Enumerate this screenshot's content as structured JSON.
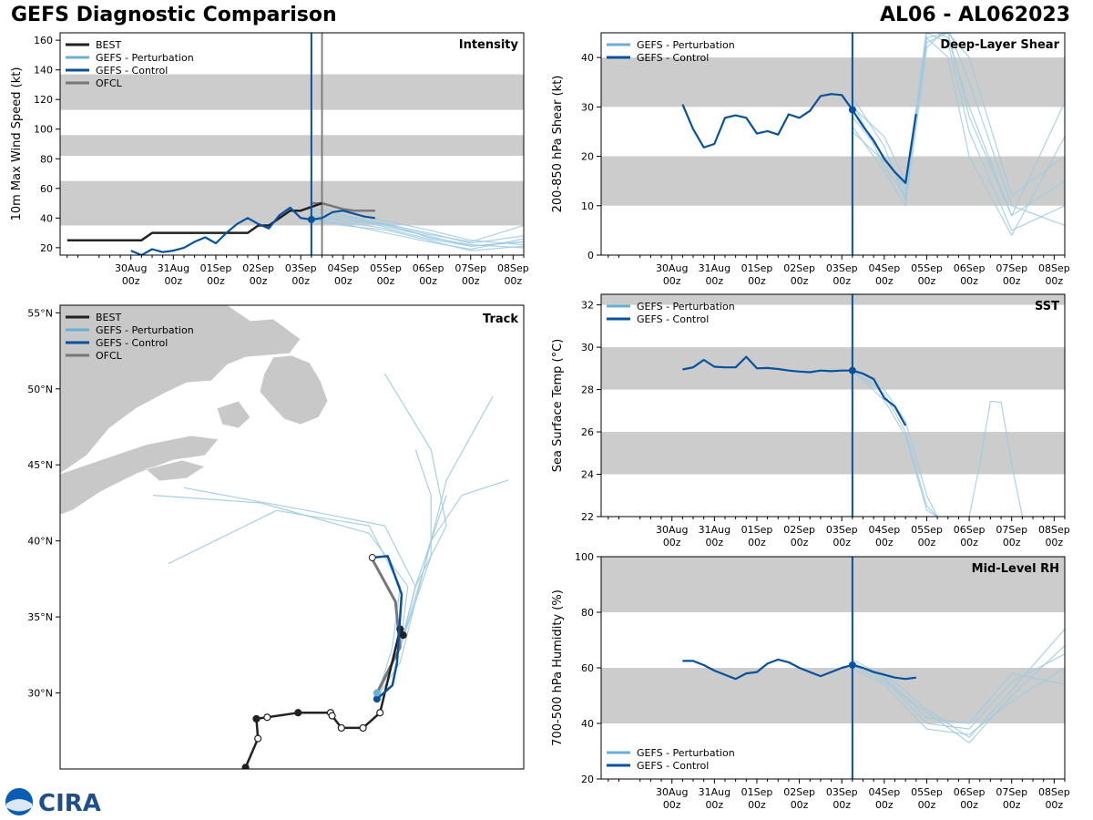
{
  "header": {
    "title": "GEFS Diagnostic Comparison",
    "storm": "AL06 - AL062023"
  },
  "logo": {
    "text": "CIRA"
  },
  "colors": {
    "best": "#222222",
    "perturbation": "#6aaed6",
    "control": "#08519c",
    "ofcl": "#777777",
    "band": "#cccccc",
    "pert_thin": "#9ecae1"
  },
  "legend_labels": {
    "best": "BEST",
    "perturbation": "GEFS - Perturbation",
    "control": "GEFS - Control",
    "ofcl": "OFCL"
  },
  "time_axis": {
    "units": "hours since 30Aug 00z",
    "range": [
      -40,
      222
    ],
    "ticks": [
      0,
      24,
      48,
      72,
      96,
      120,
      144,
      168,
      192,
      216
    ],
    "tick_labels_top": [
      "30Aug",
      "31Aug",
      "01Sep",
      "02Sep",
      "03Sep",
      "04Sep",
      "05Sep",
      "06Sep",
      "07Sep",
      "08Sep"
    ],
    "tick_labels_bottom": [
      "00z",
      "00z",
      "00z",
      "00z",
      "00z",
      "00z",
      "00z",
      "00z",
      "00z",
      "00z"
    ],
    "init_time": 102,
    "ofcl_time": 108
  },
  "chart_data": [
    {
      "id": "intensity",
      "type": "line",
      "title": "Intensity",
      "ylabel": "10m Max Wind Speed (kt)",
      "ylim": [
        15,
        165
      ],
      "yticks": [
        20,
        40,
        60,
        80,
        100,
        120,
        140,
        160
      ],
      "bands": [
        [
          35,
          65
        ],
        [
          82,
          96
        ],
        [
          113,
          137
        ]
      ],
      "best": {
        "x": [
          -36,
          6,
          12,
          24,
          36,
          48,
          60,
          66,
          72,
          78,
          84,
          90,
          96,
          108
        ],
        "y": [
          25,
          25,
          30,
          30,
          30,
          30,
          30,
          30,
          35,
          35,
          40,
          45,
          45,
          50
        ]
      },
      "control": {
        "x": [
          0,
          6,
          12,
          18,
          24,
          30,
          36,
          42,
          48,
          54,
          60,
          66,
          72,
          78,
          84,
          90,
          96,
          102,
          108,
          114,
          120,
          126,
          132,
          138
        ],
        "y": [
          18,
          15,
          19,
          17,
          18,
          20,
          24,
          27,
          23,
          30,
          36,
          40,
          36,
          33,
          42,
          47,
          40,
          39,
          40,
          44,
          45,
          43,
          41,
          40
        ]
      },
      "ofcl": {
        "x": [
          102,
          108,
          114,
          120,
          126,
          132,
          138
        ],
        "y": [
          50,
          50,
          48,
          46,
          45,
          45,
          45
        ]
      },
      "perturbation": [
        {
          "x": [
            102,
            120,
            144,
            168,
            192,
            222
          ],
          "y": [
            44,
            42,
            36,
            30,
            23,
            28
          ]
        },
        {
          "x": [
            102,
            120,
            144,
            168,
            192,
            222
          ],
          "y": [
            38,
            40,
            34,
            28,
            21,
            24
          ]
        },
        {
          "x": [
            102,
            120,
            144,
            168,
            192,
            222
          ],
          "y": [
            42,
            38,
            36,
            27,
            22,
            20
          ]
        },
        {
          "x": [
            102,
            120,
            144,
            168,
            192,
            222
          ],
          "y": [
            40,
            36,
            30,
            24,
            19,
            26
          ]
        },
        {
          "x": [
            102,
            120,
            144,
            168,
            192,
            222
          ],
          "y": [
            46,
            44,
            38,
            32,
            25,
            22
          ]
        },
        {
          "x": [
            102,
            120,
            144,
            168,
            192,
            222
          ],
          "y": [
            36,
            37,
            33,
            26,
            21,
            24
          ]
        },
        {
          "x": [
            102,
            120,
            144,
            168,
            192,
            222
          ],
          "y": [
            41,
            41,
            35,
            29,
            24,
            35
          ]
        },
        {
          "x": [
            102,
            120,
            144,
            168,
            192,
            222
          ],
          "y": [
            39,
            35,
            32,
            25,
            18,
            21
          ]
        }
      ]
    },
    {
      "id": "shear",
      "type": "line",
      "title": "Deep-Layer Shear",
      "ylabel": "200-850 hPa Shear (kt)",
      "ylim": [
        0,
        45
      ],
      "yticks": [
        0,
        10,
        20,
        30,
        40
      ],
      "bands": [
        [
          10,
          20
        ],
        [
          30,
          40
        ]
      ],
      "control": {
        "x": [
          6,
          12,
          18,
          24,
          30,
          36,
          42,
          48,
          54,
          60,
          66,
          72,
          78,
          84,
          90,
          96,
          102,
          108,
          114,
          120,
          126,
          132,
          138
        ],
        "y": [
          30.5,
          25.5,
          21.8,
          22.5,
          27.8,
          28.3,
          27.8,
          24.6,
          25.1,
          24.4,
          28.5,
          27.8,
          29.2,
          32.2,
          32.6,
          32.4,
          29.4,
          26.1,
          23.2,
          19.5,
          16.8,
          14.6,
          28.6
        ]
      },
      "perturbation": [
        {
          "x": [
            102,
            120,
            132,
            144,
            156,
            168,
            192,
            222
          ],
          "y": [
            31,
            18,
            12,
            44,
            45,
            40,
            12,
            20
          ]
        },
        {
          "x": [
            102,
            120,
            132,
            144,
            156,
            168,
            192,
            222
          ],
          "y": [
            28,
            20,
            13,
            46,
            44,
            30,
            8,
            15
          ]
        },
        {
          "x": [
            102,
            120,
            132,
            144,
            156,
            168,
            192,
            222
          ],
          "y": [
            32,
            22,
            11,
            45,
            43,
            25,
            5,
            10
          ]
        },
        {
          "x": [
            102,
            120,
            132,
            144,
            156,
            168,
            192,
            222
          ],
          "y": [
            26,
            17,
            10,
            42,
            46,
            35,
            10,
            6
          ]
        },
        {
          "x": [
            102,
            120,
            132,
            144,
            156,
            168,
            192,
            222
          ],
          "y": [
            30,
            24,
            15,
            44,
            40,
            20,
            4,
            24
          ]
        },
        {
          "x": [
            102,
            120,
            132,
            144,
            156,
            168,
            192,
            222
          ],
          "y": [
            25,
            19,
            14,
            43,
            45,
            28,
            8,
            31
          ]
        }
      ]
    },
    {
      "id": "sst",
      "type": "line",
      "title": "SST",
      "ylabel": "Sea Surface Temp (°C)",
      "ylim": [
        22,
        32.5
      ],
      "yticks": [
        22,
        24,
        26,
        28,
        30,
        32
      ],
      "bands": [
        [
          24,
          26
        ],
        [
          28,
          30
        ],
        [
          32,
          33
        ]
      ],
      "control": {
        "x": [
          6,
          12,
          18,
          24,
          30,
          36,
          42,
          48,
          54,
          60,
          66,
          72,
          78,
          84,
          90,
          96,
          102,
          108,
          114,
          120,
          126,
          132
        ],
        "y": [
          28.95,
          29.05,
          29.4,
          29.08,
          29.05,
          29.05,
          29.55,
          29.0,
          29.02,
          28.97,
          28.9,
          28.85,
          28.82,
          28.9,
          28.87,
          28.9,
          28.9,
          28.75,
          28.5,
          27.6,
          27.2,
          26.3
        ]
      },
      "perturbation": [
        {
          "x": [
            102,
            120,
            132,
            144,
            150
          ],
          "y": [
            28.9,
            27.8,
            26.0,
            22.5,
            22.0
          ]
        },
        {
          "x": [
            102,
            120,
            132,
            144,
            150
          ],
          "y": [
            28.8,
            28.0,
            26.5,
            23.0,
            22.0
          ]
        },
        {
          "x": [
            102,
            120,
            132,
            144,
            150
          ],
          "y": [
            28.9,
            27.5,
            25.8,
            22.3,
            22.0
          ]
        },
        {
          "x": [
            168,
            174,
            180,
            186,
            192,
            198
          ],
          "y": [
            22,
            24.5,
            27.45,
            27.4,
            24.5,
            22
          ]
        }
      ]
    },
    {
      "id": "rh",
      "type": "line",
      "title": "Mid-Level RH",
      "ylabel": "700-500 hPa Humidity (%)",
      "ylim": [
        20,
        100
      ],
      "yticks": [
        20,
        40,
        60,
        80,
        100
      ],
      "bands": [
        [
          40,
          60
        ],
        [
          80,
          100
        ]
      ],
      "control": {
        "x": [
          6,
          12,
          18,
          24,
          30,
          36,
          42,
          48,
          54,
          60,
          66,
          72,
          78,
          84,
          90,
          96,
          102,
          108,
          114,
          120,
          126,
          132,
          138
        ],
        "y": [
          62.5,
          62.5,
          61,
          59,
          57.5,
          56,
          58,
          58.5,
          61.5,
          63,
          62,
          60,
          58.5,
          57,
          58.5,
          60,
          61,
          60,
          58.5,
          57.5,
          56.5,
          56,
          56.5
        ]
      },
      "perturbation": [
        {
          "x": [
            102,
            120,
            144,
            168,
            192,
            222
          ],
          "y": [
            61,
            58,
            45,
            35,
            52,
            74
          ]
        },
        {
          "x": [
            102,
            120,
            144,
            168,
            192,
            222
          ],
          "y": [
            62,
            56,
            40,
            38,
            55,
            65
          ]
        },
        {
          "x": [
            102,
            120,
            144,
            168,
            192,
            222
          ],
          "y": [
            60,
            54,
            38,
            36,
            48,
            60
          ]
        },
        {
          "x": [
            102,
            120,
            144,
            168,
            192,
            222
          ],
          "y": [
            63,
            57,
            42,
            40,
            58,
            54
          ]
        },
        {
          "x": [
            102,
            120,
            144,
            168,
            192,
            222
          ],
          "y": [
            61,
            55,
            44,
            33,
            50,
            68
          ]
        }
      ]
    },
    {
      "id": "track",
      "type": "scatter",
      "title": "Track",
      "lon_range": [
        -76,
        -46
      ],
      "lat_range": [
        25,
        55.5
      ],
      "lat_ticks": [
        30,
        35,
        40,
        45,
        50,
        55
      ],
      "lat_tick_labels": [
        "30°N",
        "35°N",
        "40°N",
        "45°N",
        "50°N",
        "55°N"
      ],
      "best": {
        "lon": [
          -64.0,
          -63.2,
          -63.3,
          -62.6,
          -60.6,
          -58.5,
          -58.4,
          -57.8,
          -56.4,
          -55.3,
          -54.0,
          -53.8
        ],
        "lat": [
          25.1,
          27.0,
          28.3,
          28.4,
          28.7,
          28.7,
          28.5,
          27.7,
          27.7,
          28.7,
          34.2,
          33.8
        ]
      },
      "control": {
        "lon": [
          -55.5,
          -54.5,
          -54.2,
          -53.9,
          -54.8,
          -55.8
        ],
        "lat": [
          29.6,
          30.5,
          32.0,
          36.5,
          39.0,
          38.9
        ]
      },
      "ofcl": {
        "lon": [
          -55.5,
          -54.0,
          -54.3,
          -55.8
        ],
        "lat": [
          30.0,
          33.0,
          36.0,
          38.8
        ]
      },
      "perturbation": [
        {
          "lon": [
            -55.5,
            -54,
            -52,
            -52,
            -53
          ],
          "lat": [
            29.7,
            33,
            39,
            43,
            46
          ]
        },
        {
          "lon": [
            -55.5,
            -54,
            -53,
            -55,
            -60,
            -68
          ],
          "lat": [
            29.7,
            33,
            37,
            41,
            42,
            43.5
          ]
        },
        {
          "lon": [
            -55.5,
            -54,
            -52.5,
            -51,
            -48
          ],
          "lat": [
            29.7,
            33,
            38,
            44,
            49.5
          ]
        },
        {
          "lon": [
            -55.5,
            -54,
            -53.5,
            -56,
            -63,
            -70
          ],
          "lat": [
            29.7,
            33,
            37,
            40.5,
            42.5,
            43
          ]
        },
        {
          "lon": [
            -55.5,
            -54,
            -53,
            -51,
            -52,
            -55
          ],
          "lat": [
            29.7,
            33,
            37,
            41,
            46,
            51
          ]
        },
        {
          "lon": [
            -55.5,
            -54.5,
            -54,
            -56,
            -62,
            -66,
            -69
          ],
          "lat": [
            29.7,
            33,
            37,
            41,
            42,
            40,
            38.5
          ]
        },
        {
          "lon": [
            -55.5,
            -54,
            -53,
            -52,
            -50,
            -47
          ],
          "lat": [
            29.7,
            33,
            37,
            40,
            43,
            44
          ]
        },
        {
          "lon": [
            -55.5,
            -54,
            -53,
            -52,
            -51
          ],
          "lat": [
            29.7,
            32,
            36,
            40,
            43
          ]
        }
      ]
    }
  ]
}
